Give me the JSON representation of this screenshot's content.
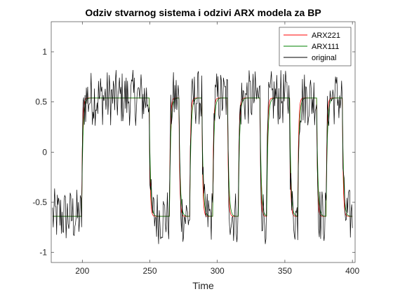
{
  "chart_data": {
    "type": "line",
    "title": "Odziv stvarnog sistema i odzivi ARX modela za BP",
    "xlabel": "Time",
    "ylabel": "",
    "xlim": [
      177,
      402
    ],
    "ylim": [
      -1.1,
      1.3
    ],
    "xticks": [
      200,
      250,
      300,
      350,
      400
    ],
    "yticks": [
      -1,
      -0.5,
      0,
      0.5,
      1
    ],
    "ytick_labels": [
      "-1",
      "-0.5",
      "0",
      "0.5",
      "1"
    ],
    "xtick_labels": [
      "200",
      "250",
      "300",
      "350",
      "400"
    ],
    "grid": false,
    "legend_position": "top-right",
    "levels": {
      "high": 0.54,
      "low": -0.64
    },
    "switch_times": [
      {
        "t": 200,
        "to": "high"
      },
      {
        "t": 250,
        "to": "low"
      },
      {
        "t": 265,
        "to": "high"
      },
      {
        "t": 272,
        "to": "low"
      },
      {
        "t": 280,
        "to": "high"
      },
      {
        "t": 289,
        "to": "low"
      },
      {
        "t": 297,
        "to": "high"
      },
      {
        "t": 308,
        "to": "low"
      },
      {
        "t": 316,
        "to": "high"
      },
      {
        "t": 332,
        "to": "low"
      },
      {
        "t": 337,
        "to": "high"
      },
      {
        "t": 354,
        "to": "low"
      },
      {
        "t": 360,
        "to": "high"
      },
      {
        "t": 374,
        "to": "low"
      },
      {
        "t": 381,
        "to": "high"
      },
      {
        "t": 393,
        "to": "low"
      }
    ],
    "x_start": 178,
    "x_end": 400,
    "noise_amplitude": 0.2,
    "series": [
      {
        "name": "ARX221",
        "color": "#ff0000"
      },
      {
        "name": "ARX111",
        "color": "#008000"
      },
      {
        "name": "original",
        "color": "#000000"
      }
    ]
  }
}
